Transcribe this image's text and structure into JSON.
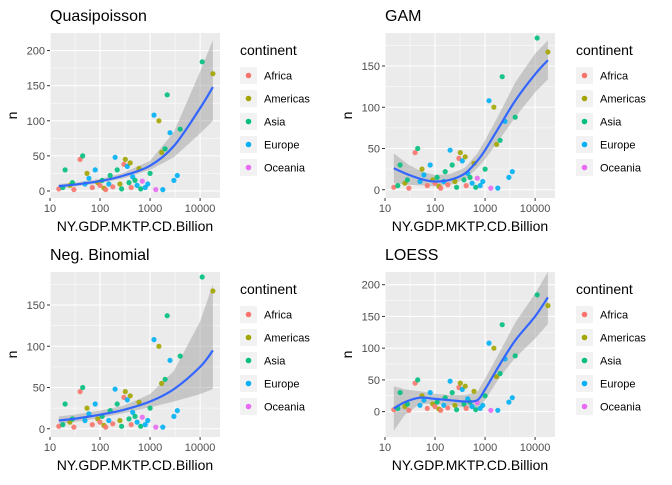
{
  "legend": {
    "title": "continent",
    "entries": [
      {
        "name": "Africa",
        "color": "#F8766D"
      },
      {
        "name": "Americas",
        "color": "#A3A500"
      },
      {
        "name": "Asia",
        "color": "#00BF7D"
      },
      {
        "name": "Europe",
        "color": "#00B0F6"
      },
      {
        "name": "Oceania",
        "color": "#E76BF3"
      }
    ]
  },
  "fit_color": "#3366FF",
  "band_color": "#999999",
  "panel_background": "#EBEBEB",
  "points": [
    {
      "gdp": 15,
      "n": 3,
      "continent": "Africa"
    },
    {
      "gdp": 18,
      "n": 5,
      "continent": "Asia"
    },
    {
      "gdp": 20,
      "n": 30,
      "continent": "Asia"
    },
    {
      "gdp": 25,
      "n": 8,
      "continent": "Americas"
    },
    {
      "gdp": 28,
      "n": 12,
      "continent": "Asia"
    },
    {
      "gdp": 30,
      "n": 2,
      "continent": "Africa"
    },
    {
      "gdp": 40,
      "n": 45,
      "continent": "Africa"
    },
    {
      "gdp": 45,
      "n": 50,
      "continent": "Asia"
    },
    {
      "gdp": 50,
      "n": 10,
      "continent": "Europe"
    },
    {
      "gdp": 55,
      "n": 25,
      "continent": "Americas"
    },
    {
      "gdp": 60,
      "n": 18,
      "continent": "Europe"
    },
    {
      "gdp": 70,
      "n": 5,
      "continent": "Africa"
    },
    {
      "gdp": 80,
      "n": 30,
      "continent": "Europe"
    },
    {
      "gdp": 90,
      "n": 12,
      "continent": "Americas"
    },
    {
      "gdp": 100,
      "n": 8,
      "continent": "Africa"
    },
    {
      "gdp": 110,
      "n": 15,
      "continent": "Asia"
    },
    {
      "gdp": 120,
      "n": 4,
      "continent": "Americas"
    },
    {
      "gdp": 130,
      "n": 2,
      "continent": "Africa"
    },
    {
      "gdp": 150,
      "n": 10,
      "continent": "Europe"
    },
    {
      "gdp": 160,
      "n": 22,
      "continent": "Asia"
    },
    {
      "gdp": 180,
      "n": 6,
      "continent": "Africa"
    },
    {
      "gdp": 200,
      "n": 48,
      "continent": "Europe"
    },
    {
      "gdp": 220,
      "n": 30,
      "continent": "Asia"
    },
    {
      "gdp": 250,
      "n": 10,
      "continent": "Americas"
    },
    {
      "gdp": 270,
      "n": 3,
      "continent": "Asia"
    },
    {
      "gdp": 300,
      "n": 38,
      "continent": "Africa"
    },
    {
      "gdp": 320,
      "n": 45,
      "continent": "Americas"
    },
    {
      "gdp": 350,
      "n": 35,
      "continent": "Europe"
    },
    {
      "gdp": 380,
      "n": 12,
      "continent": "Asia"
    },
    {
      "gdp": 400,
      "n": 40,
      "continent": "Americas"
    },
    {
      "gdp": 420,
      "n": 5,
      "continent": "Africa"
    },
    {
      "gdp": 450,
      "n": 20,
      "continent": "Europe"
    },
    {
      "gdp": 500,
      "n": 15,
      "continent": "Asia"
    },
    {
      "gdp": 550,
      "n": 8,
      "continent": "Europe"
    },
    {
      "gdp": 600,
      "n": 32,
      "continent": "Americas"
    },
    {
      "gdp": 650,
      "n": 3,
      "continent": "Asia"
    },
    {
      "gdp": 700,
      "n": 14,
      "continent": "Oceania"
    },
    {
      "gdp": 800,
      "n": 5,
      "continent": "Europe"
    },
    {
      "gdp": 900,
      "n": 10,
      "continent": "Europe"
    },
    {
      "gdp": 1000,
      "n": 25,
      "continent": "Asia"
    },
    {
      "gdp": 1200,
      "n": 108,
      "continent": "Europe"
    },
    {
      "gdp": 1300,
      "n": 2,
      "continent": "Oceania"
    },
    {
      "gdp": 1500,
      "n": 100,
      "continent": "Americas"
    },
    {
      "gdp": 1700,
      "n": 55,
      "continent": "Americas"
    },
    {
      "gdp": 1800,
      "n": 2,
      "continent": "Europe"
    },
    {
      "gdp": 2000,
      "n": 60,
      "continent": "Asia"
    },
    {
      "gdp": 2200,
      "n": 137,
      "continent": "Asia"
    },
    {
      "gdp": 2500,
      "n": 83,
      "continent": "Europe"
    },
    {
      "gdp": 3000,
      "n": 15,
      "continent": "Europe"
    },
    {
      "gdp": 3500,
      "n": 22,
      "continent": "Europe"
    },
    {
      "gdp": 4000,
      "n": 88,
      "continent": "Asia"
    },
    {
      "gdp": 11000,
      "n": 184,
      "continent": "Asia"
    },
    {
      "gdp": 18000,
      "n": 167,
      "continent": "Americas"
    }
  ],
  "chart_data": [
    {
      "type": "scatter",
      "title": "Quasipoisson",
      "xlabel": "NY.GDP.MKTP.CD.Billion",
      "ylabel": "n",
      "x_scale": "log10",
      "xlim": [
        10,
        25000
      ],
      "ylim": [
        -10,
        225
      ],
      "x_ticks": [
        10,
        100,
        1000,
        10000
      ],
      "x_tick_labels": [
        "10",
        "100",
        "1000",
        "10000"
      ],
      "y_ticks": [
        0,
        50,
        100,
        150,
        200
      ],
      "y_tick_labels": [
        "0",
        "50",
        "100",
        "150",
        "200"
      ],
      "fit": {
        "method": "quasipoisson",
        "x": [
          15,
          30,
          100,
          300,
          1000,
          3000,
          10000,
          18000
        ],
        "y": [
          7,
          9,
          14,
          22,
          36,
          64,
          118,
          148
        ],
        "lower": [
          4,
          6,
          11,
          18,
          30,
          48,
          82,
          100
        ],
        "upper": [
          10,
          12,
          17,
          26,
          43,
          84,
          170,
          215
        ]
      }
    },
    {
      "type": "scatter",
      "title": "GAM",
      "xlabel": "NY.GDP.MKTP.CD.Billion",
      "ylabel": "n",
      "x_scale": "log10",
      "xlim": [
        10,
        25000
      ],
      "ylim": [
        -10,
        190
      ],
      "x_ticks": [
        10,
        100,
        1000,
        10000
      ],
      "x_tick_labels": [
        "10",
        "100",
        "1000",
        "10000"
      ],
      "y_ticks": [
        0,
        50,
        100,
        150
      ],
      "y_tick_labels": [
        "0",
        "50",
        "100",
        "150"
      ],
      "fit": {
        "method": "gam",
        "x": [
          15,
          30,
          60,
          100,
          200,
          400,
          700,
          1000,
          2000,
          4000,
          10000,
          18000
        ],
        "y": [
          26,
          18,
          12,
          10,
          12,
          20,
          35,
          48,
          78,
          108,
          140,
          157
        ],
        "lower": [
          8,
          6,
          5,
          4,
          6,
          13,
          26,
          37,
          62,
          88,
          118,
          134
        ],
        "upper": [
          44,
          30,
          21,
          18,
          19,
          27,
          44,
          60,
          94,
          130,
          165,
          181
        ]
      }
    },
    {
      "type": "scatter",
      "title": "Neg. Binomial",
      "xlabel": "NY.GDP.MKTP.CD.Billion",
      "ylabel": "n",
      "x_scale": "log10",
      "xlim": [
        10,
        25000
      ],
      "ylim": [
        -10,
        190
      ],
      "x_ticks": [
        10,
        100,
        1000,
        10000
      ],
      "x_tick_labels": [
        "10",
        "100",
        "1000",
        "10000"
      ],
      "y_ticks": [
        0,
        50,
        100,
        150
      ],
      "y_tick_labels": [
        "0",
        "50",
        "100",
        "150"
      ],
      "fit": {
        "method": "negative binomial",
        "x": [
          15,
          30,
          100,
          300,
          1000,
          3000,
          10000,
          18000
        ],
        "y": [
          10,
          12,
          17,
          23,
          33,
          48,
          75,
          95
        ],
        "lower": [
          6,
          8,
          13,
          19,
          26,
          33,
          42,
          48
        ],
        "upper": [
          15,
          17,
          22,
          28,
          42,
          70,
          130,
          175
        ]
      }
    },
    {
      "type": "scatter",
      "title": "LOESS",
      "xlabel": "NY.GDP.MKTP.CD.Billion",
      "ylabel": "n",
      "x_scale": "log10",
      "xlim": [
        10,
        25000
      ],
      "ylim": [
        -40,
        220
      ],
      "x_ticks": [
        10,
        100,
        1000,
        10000
      ],
      "x_tick_labels": [
        "10",
        "100",
        "1000",
        "10000"
      ],
      "y_ticks": [
        0,
        50,
        100,
        150,
        200
      ],
      "y_tick_labels": [
        "0",
        "50",
        "100",
        "150",
        "200"
      ],
      "fit": {
        "method": "loess",
        "x": [
          15,
          25,
          50,
          100,
          200,
          400,
          700,
          1000,
          2000,
          4000,
          10000,
          18000
        ],
        "y": [
          5,
          15,
          22,
          20,
          18,
          16,
          18,
          35,
          75,
          112,
          150,
          180
        ],
        "lower": [
          -30,
          -5,
          12,
          12,
          10,
          6,
          5,
          18,
          55,
          85,
          115,
          138
        ],
        "upper": [
          40,
          35,
          32,
          28,
          26,
          26,
          31,
          52,
          95,
          140,
          186,
          220
        ]
      }
    }
  ]
}
